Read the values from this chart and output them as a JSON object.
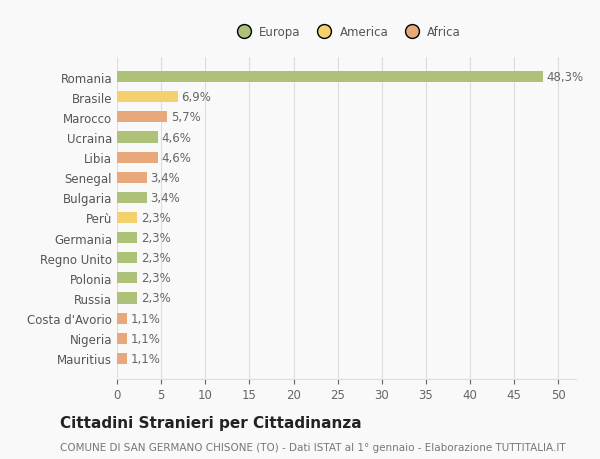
{
  "countries": [
    "Romania",
    "Brasile",
    "Marocco",
    "Ucraina",
    "Libia",
    "Senegal",
    "Bulgaria",
    "Perù",
    "Germania",
    "Regno Unito",
    "Polonia",
    "Russia",
    "Costa d'Avorio",
    "Nigeria",
    "Mauritius"
  ],
  "values": [
    48.3,
    6.9,
    5.7,
    4.6,
    4.6,
    3.4,
    3.4,
    2.3,
    2.3,
    2.3,
    2.3,
    2.3,
    1.1,
    1.1,
    1.1
  ],
  "labels": [
    "48,3%",
    "6,9%",
    "5,7%",
    "4,6%",
    "4,6%",
    "3,4%",
    "3,4%",
    "2,3%",
    "2,3%",
    "2,3%",
    "2,3%",
    "2,3%",
    "1,1%",
    "1,1%",
    "1,1%"
  ],
  "colors": [
    "#adc178",
    "#f5d06e",
    "#e8a87c",
    "#adc178",
    "#e8a87c",
    "#e8a87c",
    "#adc178",
    "#f5d06e",
    "#adc178",
    "#adc178",
    "#adc178",
    "#adc178",
    "#e8a87c",
    "#e8a87c",
    "#e8a87c"
  ],
  "legend_labels": [
    "Europa",
    "America",
    "Africa"
  ],
  "legend_colors": [
    "#adc178",
    "#f5d06e",
    "#e8a87c"
  ],
  "title": "Cittadini Stranieri per Cittadinanza",
  "subtitle": "COMUNE DI SAN GERMANO CHISONE (TO) - Dati ISTAT al 1° gennaio - Elaborazione TUTTITALIA.IT",
  "xlim": [
    0,
    52
  ],
  "xticks": [
    0,
    5,
    10,
    15,
    20,
    25,
    30,
    35,
    40,
    45,
    50
  ],
  "background_color": "#f9f9f9",
  "grid_color": "#dddddd",
  "bar_height": 0.55,
  "label_fontsize": 8.5,
  "tick_fontsize": 8.5,
  "title_fontsize": 11,
  "subtitle_fontsize": 7.5
}
